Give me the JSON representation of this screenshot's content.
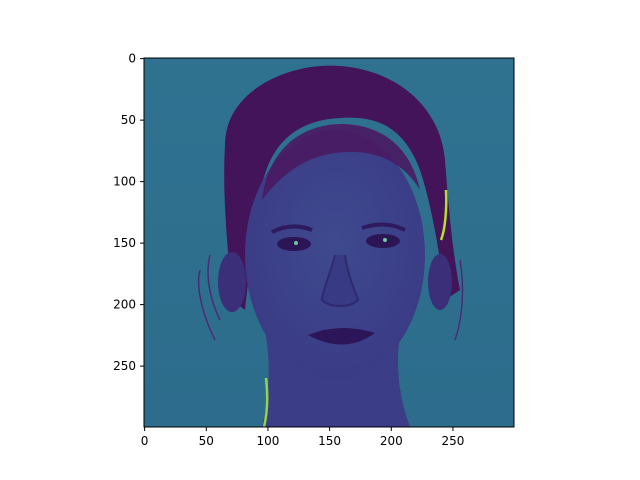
{
  "chart_data": {
    "type": "heatmap",
    "subject": "imshow of a grayscale portrait filtered (edge-like emboss), viridis colormap",
    "colormap": "viridis",
    "colors": {
      "background": "#2f6f8e",
      "hair": "#44145a",
      "face": "#3b3f8a",
      "highlight": "#7fd84c",
      "edge_bright": "#b9de2c"
    },
    "xlim": [
      0,
      299
    ],
    "ylim": [
      299,
      0
    ],
    "xticks": [
      0,
      50,
      100,
      150,
      200,
      250
    ],
    "yticks": [
      0,
      50,
      100,
      150,
      200,
      250
    ],
    "xtick_labels": [
      "0",
      "50",
      "100",
      "150",
      "200",
      "250"
    ],
    "ytick_labels": [
      "0",
      "50",
      "100",
      "150",
      "200",
      "250"
    ],
    "grid": false,
    "title": "",
    "xlabel": "",
    "ylabel": ""
  }
}
